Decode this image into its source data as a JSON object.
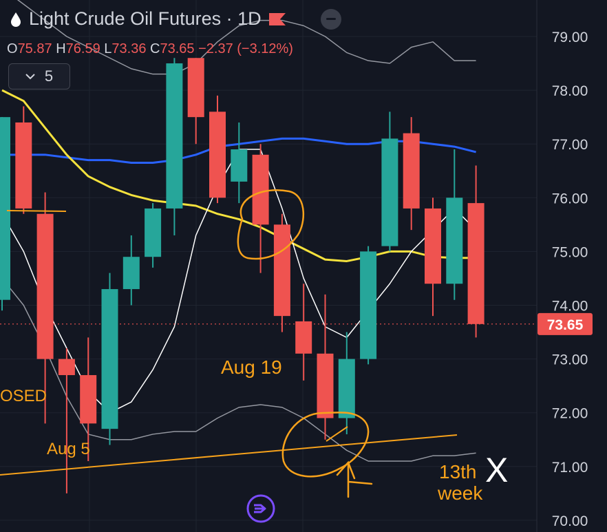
{
  "header": {
    "symbol_title": "Light Crude Oil Futures · 1D",
    "collapse_count": "5",
    "ohlc": {
      "o_label": "O",
      "o_value": "75.87",
      "h_label": "H",
      "h_value": "76.59",
      "l_label": "L",
      "l_value": "73.36",
      "c_label": "C",
      "c_value": "73.65",
      "change": "−2.37 (−3.12%)"
    }
  },
  "colors": {
    "up": "#26a69a",
    "down": "#ef5350",
    "ma_blue": "#2962ff",
    "ma_yellow": "#f5e23d",
    "annotation": "#f7a21b",
    "background": "#131722"
  },
  "chart_data": {
    "type": "candlestick",
    "y_axis": {
      "ticks": [
        "79.00",
        "78.00",
        "77.00",
        "76.00",
        "75.00",
        "74.00",
        "73.00",
        "72.00",
        "71.00",
        "70.00"
      ],
      "ylim": [
        69.9,
        79.7
      ]
    },
    "last_price": "73.65",
    "candles": [
      {
        "o": 74.1,
        "h": 77.5,
        "l": 73.9,
        "c": 77.5
      },
      {
        "o": 77.4,
        "h": 77.7,
        "l": 75.7,
        "c": 75.8
      },
      {
        "o": 75.7,
        "h": 76.1,
        "l": 71.8,
        "c": 73.0
      },
      {
        "o": 73.0,
        "h": 73.2,
        "l": 70.5,
        "c": 72.7
      },
      {
        "o": 72.7,
        "h": 73.4,
        "l": 71.1,
        "c": 71.8
      },
      {
        "o": 71.7,
        "h": 74.6,
        "l": 71.4,
        "c": 74.3
      },
      {
        "o": 74.3,
        "h": 75.3,
        "l": 74.0,
        "c": 74.9
      },
      {
        "o": 74.9,
        "h": 75.9,
        "l": 74.7,
        "c": 75.8
      },
      {
        "o": 75.8,
        "h": 78.6,
        "l": 75.3,
        "c": 78.5
      },
      {
        "o": 78.6,
        "h": 78.6,
        "l": 77.0,
        "c": 77.5
      },
      {
        "o": 77.6,
        "h": 77.9,
        "l": 75.9,
        "c": 76.0
      },
      {
        "o": 76.3,
        "h": 77.4,
        "l": 75.9,
        "c": 76.9
      },
      {
        "o": 76.8,
        "h": 77.0,
        "l": 74.6,
        "c": 75.5
      },
      {
        "o": 75.5,
        "h": 75.7,
        "l": 73.5,
        "c": 73.8
      },
      {
        "o": 73.7,
        "h": 74.4,
        "l": 72.6,
        "c": 73.1
      },
      {
        "o": 73.1,
        "h": 74.2,
        "l": 71.5,
        "c": 71.9
      },
      {
        "o": 71.9,
        "h": 73.5,
        "l": 71.6,
        "c": 73.0
      },
      {
        "o": 73.0,
        "h": 75.1,
        "l": 72.9,
        "c": 75.0
      },
      {
        "o": 75.1,
        "h": 77.6,
        "l": 75.0,
        "c": 77.1
      },
      {
        "o": 77.2,
        "h": 77.5,
        "l": 75.4,
        "c": 75.8
      },
      {
        "o": 75.8,
        "h": 76.0,
        "l": 73.8,
        "c": 74.4
      },
      {
        "o": 74.4,
        "h": 76.9,
        "l": 74.1,
        "c": 76.0
      },
      {
        "o": 75.9,
        "h": 76.6,
        "l": 73.4,
        "c": 73.65
      }
    ],
    "ma_blue": [
      76.8,
      76.8,
      76.8,
      76.75,
      76.7,
      76.7,
      76.65,
      76.65,
      76.7,
      76.8,
      76.95,
      77.0,
      77.05,
      77.1,
      77.1,
      77.05,
      77.0,
      77.0,
      77.05,
      77.05,
      77.0,
      76.95,
      76.85
    ],
    "ma_yellow": [
      78.0,
      77.8,
      77.3,
      76.8,
      76.4,
      76.2,
      76.05,
      75.95,
      75.9,
      75.85,
      75.7,
      75.6,
      75.45,
      75.25,
      75.05,
      74.85,
      74.82,
      74.9,
      75.0,
      75.0,
      74.9,
      74.88,
      74.88
    ],
    "ma_white": [
      75.7,
      75.0,
      74.0,
      73.2,
      72.4,
      72.0,
      72.2,
      72.8,
      73.6,
      75.3,
      76.2,
      76.9,
      76.9,
      75.8,
      74.5,
      73.6,
      73.4,
      73.9,
      74.4,
      75.0,
      75.4,
      75.8,
      75.4
    ],
    "ma_gray": [
      79.9,
      79.6,
      79.3,
      79.0,
      78.8,
      78.6,
      78.4,
      78.3,
      78.3,
      78.5,
      78.9,
      79.2,
      79.3,
      79.3,
      79.2,
      79.0,
      78.7,
      78.55,
      78.5,
      78.8,
      78.9,
      78.55,
      78.55
    ],
    "ma_gray_lower": [
      74.5,
      74.0,
      73.2,
      72.3,
      71.6,
      71.5,
      71.5,
      71.6,
      71.65,
      71.65,
      71.9,
      72.1,
      72.15,
      72.1,
      71.9,
      71.6,
      71.3,
      71.1,
      71.1,
      71.1,
      71.2,
      71.2,
      71.25
    ],
    "annotations": {
      "aug19": "Aug 19",
      "aug5": "Aug 5",
      "closed_partial": "OSED",
      "week_line1": "13th",
      "week_line2": "week",
      "mark_x": "X"
    }
  }
}
